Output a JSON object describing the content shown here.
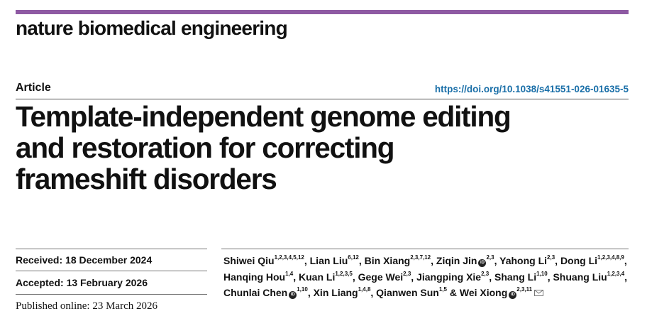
{
  "journal": {
    "name": "nature biomedical engineering",
    "accent_color": "#8e5aa3"
  },
  "article": {
    "type": "Article",
    "doi": "https://doi.org/10.1038/s41551-026-01635-5",
    "title_lines": [
      "Template-independent genome editing",
      "and restoration for correcting",
      "frameshift disorders"
    ]
  },
  "dates": {
    "received": "Received: 18 December 2024",
    "accepted": "Accepted: 13 February 2026",
    "published": "Published online: 23 March 2026"
  },
  "authors": [
    {
      "name": "Shiwei Qiu",
      "aff": "1,2,3,4,5,12",
      "orcid": false,
      "sep": ", "
    },
    {
      "name": "Lian Liu",
      "aff": "6,12",
      "orcid": false,
      "sep": ", "
    },
    {
      "name": "Bin Xiang",
      "aff": "2,3,7,12",
      "orcid": false,
      "sep": ", "
    },
    {
      "name": "Ziqin Jin",
      "aff": "2,3",
      "orcid": true,
      "sep": ", "
    },
    {
      "name": "Yahong Li",
      "aff": "2,3",
      "orcid": false,
      "sep": ", "
    },
    {
      "name": "Dong Li",
      "aff": "1,2,3,4,8,9",
      "orcid": false,
      "sep": ", "
    },
    {
      "name": "Hanqing Hou",
      "aff": "1,4",
      "orcid": false,
      "sep": ", "
    },
    {
      "name": "Kuan Li",
      "aff": "1,2,3,5",
      "orcid": false,
      "sep": ", "
    },
    {
      "name": "Gege Wei",
      "aff": "2,3",
      "orcid": false,
      "sep": ", "
    },
    {
      "name": "Jiangping Xie",
      "aff": "2,3",
      "orcid": false,
      "sep": ", "
    },
    {
      "name": "Shang Li",
      "aff": "1,10",
      "orcid": false,
      "sep": ", "
    },
    {
      "name": "Shuang Liu",
      "aff": "1,2,3,4",
      "orcid": false,
      "sep": ", "
    },
    {
      "name": "Chunlai Chen",
      "aff": "1,10",
      "orcid": true,
      "sep": ", "
    },
    {
      "name": "Xin Liang",
      "aff": "1,4,8",
      "orcid": false,
      "sep": ", "
    },
    {
      "name": "Qianwen Sun",
      "aff": "1,5",
      "orcid": false,
      "sep": " & "
    },
    {
      "name": "Wei Xiong",
      "aff": "2,3,11",
      "orcid": true,
      "sep": "",
      "corresponding": true
    }
  ],
  "icons": {
    "orcid": "orcid-icon",
    "envelope": "envelope-icon"
  }
}
